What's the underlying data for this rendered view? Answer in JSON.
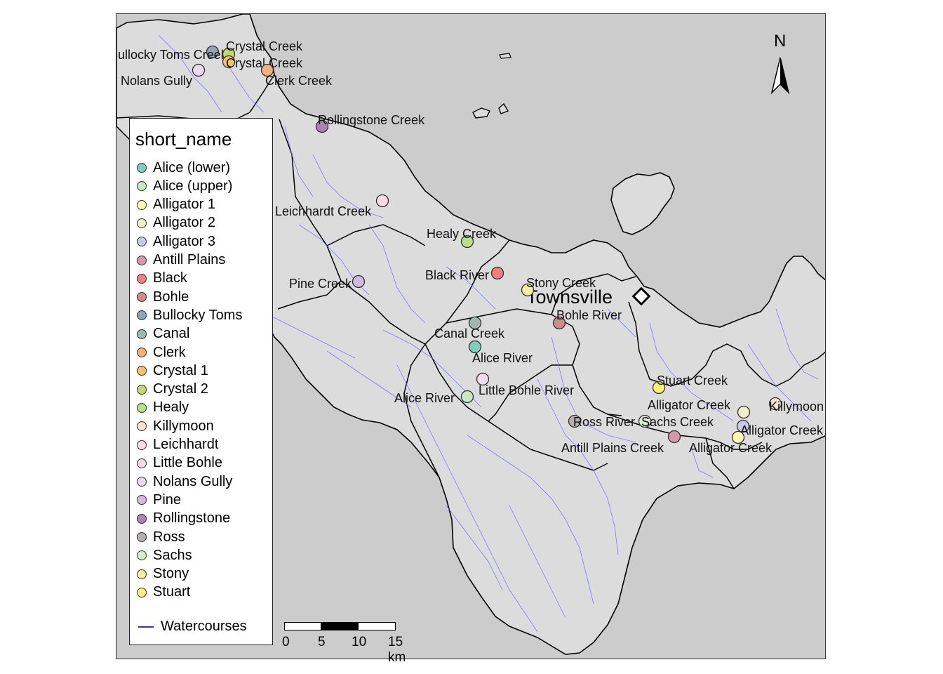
{
  "legend": {
    "title": "short_name",
    "items": [
      {
        "label": "Alice (lower)",
        "color": "#7fcdbb"
      },
      {
        "label": "Alice (upper)",
        "color": "#c7e9c0"
      },
      {
        "label": "Alligator 1",
        "color": "#ffffb2"
      },
      {
        "label": "Alligator 2",
        "color": "#f0f0c8"
      },
      {
        "label": "Alligator 3",
        "color": "#c8c8e8"
      },
      {
        "label": "Antill Plains",
        "color": "#d29aa8"
      },
      {
        "label": "Black",
        "color": "#f08080"
      },
      {
        "label": "Bohle",
        "color": "#cd8c8c"
      },
      {
        "label": "Bullocky Toms",
        "color": "#8fa3bb"
      },
      {
        "label": "Canal",
        "color": "#9fb8b0"
      },
      {
        "label": "Clerk",
        "color": "#f0b27a"
      },
      {
        "label": "Crystal 1",
        "color": "#f5c26b"
      },
      {
        "label": "Crystal 2",
        "color": "#c5d86d"
      },
      {
        "label": "Healy",
        "color": "#b8e08a"
      },
      {
        "label": "Killymoon",
        "color": "#f5e3d0"
      },
      {
        "label": "Leichhardt",
        "color": "#fdd9e8"
      },
      {
        "label": "Little Bohle",
        "color": "#f0dce8"
      },
      {
        "label": "Nolans Gully",
        "color": "#e8dcec"
      },
      {
        "label": "Pine",
        "color": "#d4b8e0"
      },
      {
        "label": "Rollingstone",
        "color": "#b07fb8"
      },
      {
        "label": "Ross",
        "color": "#b8b0b0"
      },
      {
        "label": "Sachs",
        "color": "#d8f0d0"
      },
      {
        "label": "Stony",
        "color": "#f0f0a0"
      },
      {
        "label": "Stuart",
        "color": "#fff07a"
      }
    ],
    "watercourses_label": "Watercourses",
    "watercourses_color": "#3333cc"
  },
  "north_arrow": {
    "label": "N"
  },
  "town": {
    "label": "Townsville"
  },
  "scalebar": {
    "ticks": [
      "0",
      "5",
      "10",
      "15 km"
    ]
  },
  "colors": {
    "land": "#dcdcdc",
    "sea": "#cccccc",
    "border": "#000000",
    "river": "#6a6aff"
  },
  "sites": [
    {
      "label": "Bullocky Toms Creek",
      "category": "Bullocky Toms"
    },
    {
      "label": "Crystal Creek",
      "category": "Crystal 2"
    },
    {
      "label": "Crystal Creek",
      "category": "Crystal 1"
    },
    {
      "label": "Nolans Gully",
      "category": "Nolans Gully"
    },
    {
      "label": "Clerk Creek",
      "category": "Clerk"
    },
    {
      "label": "Rollingstone Creek",
      "category": "Rollingstone"
    },
    {
      "label": "Leichhardt Creek",
      "category": "Leichhardt"
    },
    {
      "label": "Healy Creek",
      "category": "Healy"
    },
    {
      "label": "Black River",
      "category": "Black"
    },
    {
      "label": "Pine Creek",
      "category": "Pine"
    },
    {
      "label": "Stony Creek",
      "category": "Stony"
    },
    {
      "label": "Bohle River",
      "category": "Bohle"
    },
    {
      "label": "Canal Creek",
      "category": "Canal"
    },
    {
      "label": "Alice River",
      "category": "Alice (lower)"
    },
    {
      "label": "Little Bohle River",
      "category": "Little Bohle"
    },
    {
      "label": "Alice River",
      "category": "Alice (upper)"
    },
    {
      "label": "Stuart Creek",
      "category": "Stuart"
    },
    {
      "label": "Alligator Creek",
      "category": "Alligator 2"
    },
    {
      "label": "Killymoon Creek",
      "category": "Killymoon"
    },
    {
      "label": "Ross River",
      "category": "Ross"
    },
    {
      "label": "Sachs Creek",
      "category": "Sachs"
    },
    {
      "label": "Alligator Creek",
      "category": "Alligator 3"
    },
    {
      "label": "Antill Plains Creek",
      "category": "Antill Plains"
    },
    {
      "label": "Alligator Creek",
      "category": "Alligator 1"
    }
  ]
}
